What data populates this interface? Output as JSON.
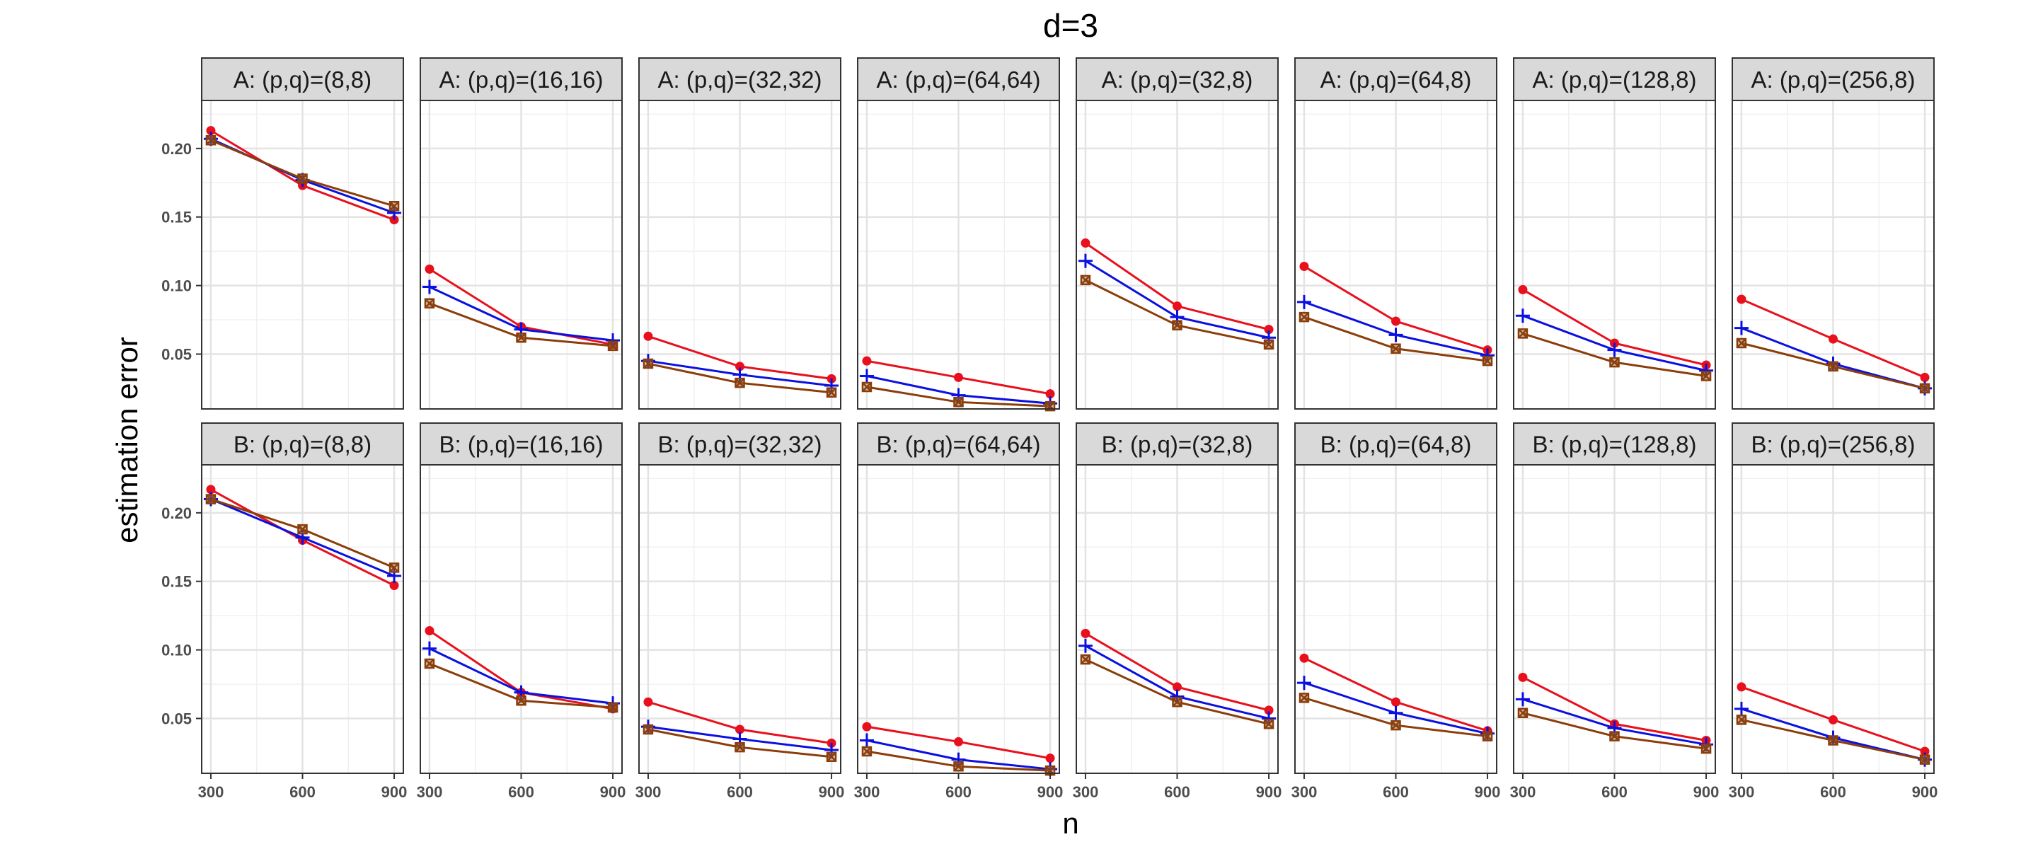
{
  "chart_data": {
    "type": "line",
    "title": "d=3",
    "xlabel": "n",
    "ylabel": "estimation error",
    "x": [
      300,
      600,
      900
    ],
    "x_ticks": [
      300,
      600,
      900
    ],
    "y_ticks": [
      0.05,
      0.1,
      0.15,
      0.2
    ],
    "y_tick_labels": [
      "0.05",
      "0.10",
      "0.15",
      "0.20"
    ],
    "ylim": [
      0.01,
      0.235
    ],
    "xlim": [
      270,
      930
    ],
    "grid": true,
    "series_styles": [
      {
        "id": "s1",
        "color": "#e8101c",
        "marker": "circle"
      },
      {
        "id": "s2",
        "color": "#0a10e0",
        "marker": "plus"
      },
      {
        "id": "s3",
        "color": "#8b3d0a",
        "marker": "boxed-x"
      }
    ],
    "rows": [
      {
        "label": "A",
        "panels": [
          {
            "title": "A: (p,q)=(8,8)",
            "series": [
              [
                0.213,
                0.173,
                0.148
              ],
              [
                0.207,
                0.177,
                0.153
              ],
              [
                0.206,
                0.178,
                0.158
              ]
            ]
          },
          {
            "title": "A: (p,q)=(16,16)",
            "series": [
              [
                0.112,
                0.07,
                0.057
              ],
              [
                0.099,
                0.068,
                0.06
              ],
              [
                0.087,
                0.062,
                0.056
              ]
            ]
          },
          {
            "title": "A: (p,q)=(32,32)",
            "series": [
              [
                0.063,
                0.041,
                0.032
              ],
              [
                0.045,
                0.035,
                0.027
              ],
              [
                0.043,
                0.029,
                0.022
              ]
            ]
          },
          {
            "title": "A: (p,q)=(64,64)",
            "series": [
              [
                0.045,
                0.033,
                0.021
              ],
              [
                0.034,
                0.02,
                0.014
              ],
              [
                0.026,
                0.015,
                0.012
              ]
            ]
          },
          {
            "title": "A: (p,q)=(32,8)",
            "series": [
              [
                0.131,
                0.085,
                0.068
              ],
              [
                0.118,
                0.077,
                0.062
              ],
              [
                0.104,
                0.071,
                0.057
              ]
            ]
          },
          {
            "title": "A: (p,q)=(64,8)",
            "series": [
              [
                0.114,
                0.074,
                0.053
              ],
              [
                0.088,
                0.064,
                0.049
              ],
              [
                0.077,
                0.054,
                0.045
              ]
            ]
          },
          {
            "title": "A: (p,q)=(128,8)",
            "series": [
              [
                0.097,
                0.058,
                0.042
              ],
              [
                0.078,
                0.053,
                0.038
              ],
              [
                0.065,
                0.044,
                0.034
              ]
            ]
          },
          {
            "title": "A: (p,q)=(256,8)",
            "series": [
              [
                0.09,
                0.061,
                0.033
              ],
              [
                0.069,
                0.043,
                0.025
              ],
              [
                0.058,
                0.041,
                0.025
              ]
            ]
          }
        ]
      },
      {
        "label": "B",
        "panels": [
          {
            "title": "B: (p,q)=(8,8)",
            "series": [
              [
                0.217,
                0.18,
                0.147
              ],
              [
                0.21,
                0.182,
                0.154
              ],
              [
                0.21,
                0.188,
                0.16
              ]
            ]
          },
          {
            "title": "B: (p,q)=(16,16)",
            "series": [
              [
                0.114,
                0.069,
                0.057
              ],
              [
                0.101,
                0.069,
                0.061
              ],
              [
                0.09,
                0.063,
                0.058
              ]
            ]
          },
          {
            "title": "B: (p,q)=(32,32)",
            "series": [
              [
                0.062,
                0.042,
                0.032
              ],
              [
                0.044,
                0.035,
                0.027
              ],
              [
                0.042,
                0.029,
                0.022
              ]
            ]
          },
          {
            "title": "B: (p,q)=(64,64)",
            "series": [
              [
                0.044,
                0.033,
                0.021
              ],
              [
                0.034,
                0.02,
                0.013
              ],
              [
                0.026,
                0.015,
                0.012
              ]
            ]
          },
          {
            "title": "B: (p,q)=(32,8)",
            "series": [
              [
                0.112,
                0.073,
                0.056
              ],
              [
                0.103,
                0.066,
                0.05
              ],
              [
                0.093,
                0.062,
                0.046
              ]
            ]
          },
          {
            "title": "B: (p,q)=(64,8)",
            "series": [
              [
                0.094,
                0.062,
                0.041
              ],
              [
                0.076,
                0.054,
                0.039
              ],
              [
                0.065,
                0.045,
                0.037
              ]
            ]
          },
          {
            "title": "B: (p,q)=(128,8)",
            "series": [
              [
                0.08,
                0.046,
                0.034
              ],
              [
                0.064,
                0.043,
                0.031
              ],
              [
                0.054,
                0.037,
                0.028
              ]
            ]
          },
          {
            "title": "B: (p,q)=(256,8)",
            "series": [
              [
                0.073,
                0.049,
                0.026
              ],
              [
                0.057,
                0.036,
                0.02
              ],
              [
                0.049,
                0.034,
                0.02
              ]
            ]
          }
        ]
      }
    ]
  }
}
